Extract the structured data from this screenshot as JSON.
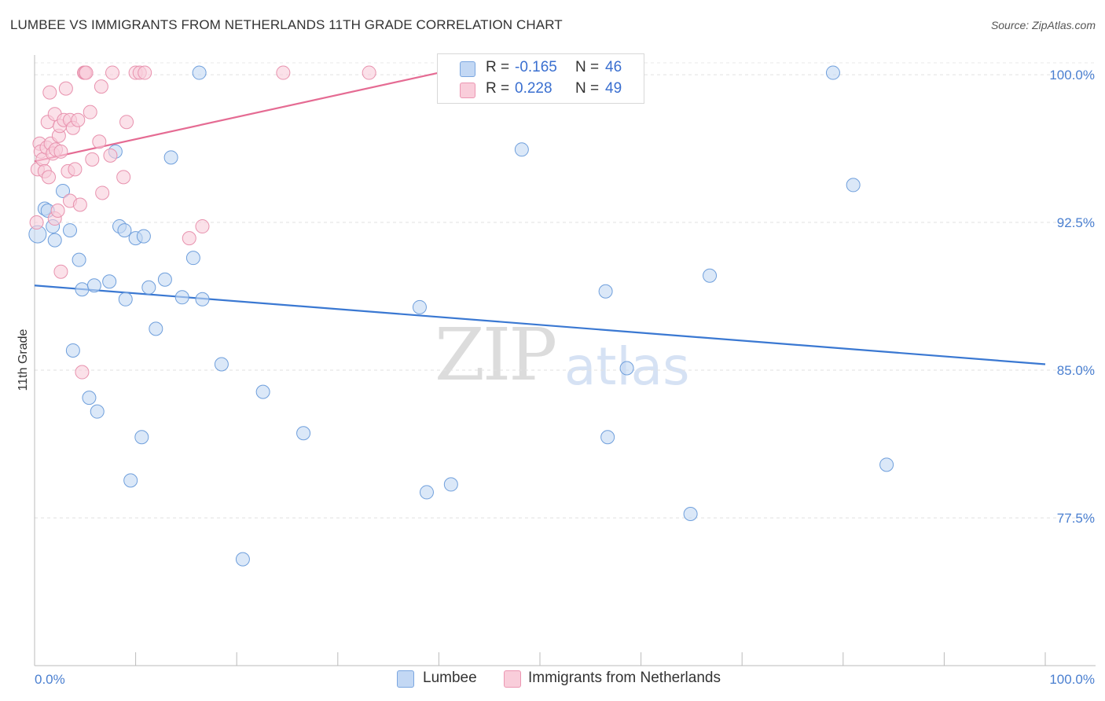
{
  "header": {
    "title": "LUMBEE VS IMMIGRANTS FROM NETHERLANDS 11TH GRADE CORRELATION CHART",
    "source": "Source: ZipAtlas.com"
  },
  "watermark": {
    "zip": "ZIP",
    "atlas": "atlas"
  },
  "legend": {
    "rows": [
      {
        "r_label": "R =",
        "r_value": "-0.165",
        "n_label": "N =",
        "n_value": "46",
        "color": "#a8c8f0"
      },
      {
        "r_label": "R =",
        "r_value": "0.228",
        "n_label": "N =",
        "n_value": "49",
        "color": "#f5b8cb"
      }
    ]
  },
  "bottom_legend": {
    "items": [
      {
        "label": "Lumbee",
        "color": "#a8c8f0"
      },
      {
        "label": "Immigrants from Netherlands",
        "color": "#f5b8cb"
      }
    ]
  },
  "chart_data": {
    "type": "scatter",
    "title": "LUMBEE VS IMMIGRANTS FROM NETHERLANDS 11TH GRADE CORRELATION CHART",
    "xlabel": "",
    "ylabel": "11th Grade",
    "xlim": [
      0,
      100
    ],
    "ylim": [
      70.0,
      101.0
    ],
    "x_tick_labels": [
      "0.0%",
      "100.0%"
    ],
    "y_ticks": [
      77.5,
      85.0,
      92.5,
      100.0
    ],
    "y_tick_labels": [
      "77.5%",
      "85.0%",
      "92.5%",
      "100.0%"
    ],
    "grid": "horizontal dashed",
    "legend_position": "top-center",
    "colors": {
      "lumbee": "#4a86d8",
      "lumbee_fill": "#a8c8f0",
      "netherlands": "#e86a92",
      "netherlands_fill": "#f5b8cb"
    },
    "series": [
      {
        "name": "Lumbee",
        "trend": {
          "x": [
            0,
            100
          ],
          "y": [
            89.3,
            85.3
          ]
        },
        "points": [
          [
            0.3,
            91.9
          ],
          [
            1.0,
            93.2
          ],
          [
            1.3,
            93.1
          ],
          [
            1.8,
            92.3
          ],
          [
            2.0,
            91.6
          ],
          [
            2.8,
            94.1
          ],
          [
            3.5,
            92.1
          ],
          [
            3.8,
            86.0
          ],
          [
            4.4,
            90.6
          ],
          [
            4.7,
            89.1
          ],
          [
            5.4,
            83.6
          ],
          [
            5.9,
            89.3
          ],
          [
            6.2,
            82.9
          ],
          [
            7.4,
            89.5
          ],
          [
            8.0,
            96.1
          ],
          [
            8.4,
            92.3
          ],
          [
            8.9,
            92.1
          ],
          [
            9.0,
            88.6
          ],
          [
            9.5,
            79.4
          ],
          [
            10.0,
            91.7
          ],
          [
            10.6,
            81.6
          ],
          [
            10.8,
            91.8
          ],
          [
            11.3,
            89.2
          ],
          [
            12.0,
            87.1
          ],
          [
            12.9,
            89.6
          ],
          [
            13.5,
            95.8
          ],
          [
            14.6,
            88.7
          ],
          [
            15.7,
            90.7
          ],
          [
            16.3,
            100.1
          ],
          [
            16.6,
            88.6
          ],
          [
            18.5,
            85.3
          ],
          [
            20.6,
            75.4
          ],
          [
            22.6,
            83.9
          ],
          [
            26.6,
            81.8
          ],
          [
            38.1,
            88.2
          ],
          [
            38.8,
            78.8
          ],
          [
            41.2,
            79.2
          ],
          [
            48.2,
            96.2
          ],
          [
            56.5,
            89.0
          ],
          [
            56.7,
            81.6
          ],
          [
            58.6,
            85.1
          ],
          [
            64.9,
            77.7
          ],
          [
            66.8,
            89.8
          ],
          [
            79.0,
            100.1
          ],
          [
            81.0,
            94.4
          ],
          [
            84.3,
            80.2
          ]
        ]
      },
      {
        "name": "Immigrants from Netherlands",
        "trend": {
          "x": [
            0,
            40
          ],
          "y": [
            95.6,
            100.1
          ]
        },
        "points": [
          [
            0.2,
            92.5
          ],
          [
            0.3,
            95.2
          ],
          [
            0.5,
            96.5
          ],
          [
            0.6,
            96.1
          ],
          [
            0.8,
            95.7
          ],
          [
            1.0,
            95.1
          ],
          [
            1.2,
            96.3
          ],
          [
            1.3,
            97.6
          ],
          [
            1.4,
            94.8
          ],
          [
            1.5,
            99.1
          ],
          [
            1.6,
            96.5
          ],
          [
            1.8,
            96.0
          ],
          [
            2.0,
            98.0
          ],
          [
            2.0,
            92.7
          ],
          [
            2.1,
            96.2
          ],
          [
            2.3,
            93.1
          ],
          [
            2.4,
            96.9
          ],
          [
            2.5,
            97.4
          ],
          [
            2.6,
            96.1
          ],
          [
            2.6,
            90.0
          ],
          [
            2.9,
            97.7
          ],
          [
            3.1,
            99.3
          ],
          [
            3.3,
            95.1
          ],
          [
            3.5,
            97.7
          ],
          [
            3.5,
            93.6
          ],
          [
            3.8,
            97.3
          ],
          [
            4.0,
            95.2
          ],
          [
            4.3,
            97.7
          ],
          [
            4.5,
            93.4
          ],
          [
            4.7,
            84.9
          ],
          [
            4.9,
            100.1
          ],
          [
            5.0,
            100.1
          ],
          [
            5.1,
            100.1
          ],
          [
            5.5,
            98.1
          ],
          [
            5.7,
            95.7
          ],
          [
            6.4,
            96.6
          ],
          [
            6.6,
            99.4
          ],
          [
            6.7,
            94.0
          ],
          [
            7.5,
            95.9
          ],
          [
            7.7,
            100.1
          ],
          [
            8.8,
            94.8
          ],
          [
            9.1,
            97.6
          ],
          [
            10.0,
            100.1
          ],
          [
            10.4,
            100.1
          ],
          [
            10.9,
            100.1
          ],
          [
            15.3,
            91.7
          ],
          [
            16.6,
            92.3
          ],
          [
            24.6,
            100.1
          ],
          [
            33.1,
            100.1
          ]
        ]
      }
    ]
  }
}
